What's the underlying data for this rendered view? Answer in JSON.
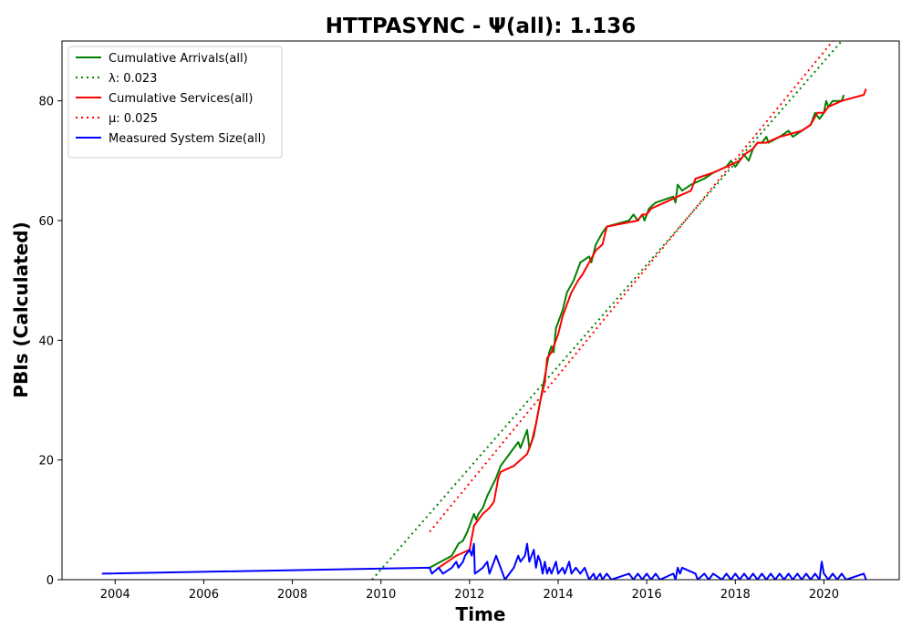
{
  "chart_data": {
    "type": "line",
    "title": "HTTPASYNC -  Ψ(all): 1.136",
    "xlabel": "Time",
    "ylabel": "PBIs (Calculated)",
    "xlim": [
      2002.8,
      2021.7
    ],
    "ylim": [
      0,
      90
    ],
    "x_ticks": [
      2004,
      2006,
      2008,
      2010,
      2012,
      2014,
      2016,
      2018,
      2020
    ],
    "y_ticks": [
      0,
      20,
      40,
      60,
      80
    ],
    "grid": false,
    "legend_position": "top-left",
    "series": [
      {
        "name": "Cumulative Arrivals(all)",
        "color": "#008000",
        "style": "solid",
        "points": [
          [
            2011.1,
            2
          ],
          [
            2011.6,
            4
          ],
          [
            2011.75,
            6
          ],
          [
            2011.85,
            6.5
          ],
          [
            2011.95,
            8
          ],
          [
            2012.05,
            10
          ],
          [
            2012.1,
            11
          ],
          [
            2012.15,
            10
          ],
          [
            2012.2,
            11
          ],
          [
            2012.3,
            12
          ],
          [
            2012.4,
            14
          ],
          [
            2012.6,
            17
          ],
          [
            2012.7,
            19
          ],
          [
            2012.8,
            20
          ],
          [
            2012.9,
            21
          ],
          [
            2013.0,
            22
          ],
          [
            2013.1,
            23
          ],
          [
            2013.15,
            22
          ],
          [
            2013.3,
            25
          ],
          [
            2013.35,
            22
          ],
          [
            2013.45,
            24
          ],
          [
            2013.55,
            28
          ],
          [
            2013.6,
            30
          ],
          [
            2013.75,
            36
          ],
          [
            2013.8,
            38
          ],
          [
            2013.85,
            39
          ],
          [
            2013.9,
            38
          ],
          [
            2013.95,
            42
          ],
          [
            2014.1,
            45
          ],
          [
            2014.2,
            48
          ],
          [
            2014.35,
            50
          ],
          [
            2014.5,
            53
          ],
          [
            2014.7,
            54
          ],
          [
            2014.75,
            53
          ],
          [
            2014.85,
            56
          ],
          [
            2015.0,
            58
          ],
          [
            2015.1,
            59
          ],
          [
            2015.6,
            60
          ],
          [
            2015.7,
            61
          ],
          [
            2015.8,
            60
          ],
          [
            2015.9,
            61
          ],
          [
            2015.95,
            60
          ],
          [
            2016.05,
            62
          ],
          [
            2016.2,
            63
          ],
          [
            2016.6,
            64
          ],
          [
            2016.65,
            63
          ],
          [
            2016.7,
            66
          ],
          [
            2016.8,
            65
          ],
          [
            2017.0,
            66
          ],
          [
            2017.3,
            67
          ],
          [
            2017.5,
            68
          ],
          [
            2017.8,
            69
          ],
          [
            2017.9,
            70
          ],
          [
            2018.0,
            69
          ],
          [
            2018.2,
            71
          ],
          [
            2018.3,
            70
          ],
          [
            2018.4,
            72
          ],
          [
            2018.5,
            73
          ],
          [
            2018.6,
            73
          ],
          [
            2018.7,
            74
          ],
          [
            2018.75,
            73
          ],
          [
            2019.0,
            74
          ],
          [
            2019.2,
            75
          ],
          [
            2019.3,
            74
          ],
          [
            2019.5,
            75
          ],
          [
            2019.7,
            76
          ],
          [
            2019.8,
            78
          ],
          [
            2019.9,
            77
          ],
          [
            2020.0,
            78
          ],
          [
            2020.05,
            80
          ],
          [
            2020.1,
            79
          ],
          [
            2020.2,
            80
          ],
          [
            2020.4,
            80
          ],
          [
            2020.45,
            81
          ]
        ]
      },
      {
        "name": "λ: 0.023",
        "color": "#008000",
        "style": "dotted",
        "points": [
          [
            2009.8,
            0
          ],
          [
            2020.4,
            90
          ]
        ]
      },
      {
        "name": "Cumulative Services(all)",
        "color": "#ff0000",
        "style": "solid",
        "points": [
          [
            2011.3,
            2
          ],
          [
            2011.7,
            4
          ],
          [
            2012.0,
            5
          ],
          [
            2012.1,
            9
          ],
          [
            2012.3,
            11
          ],
          [
            2012.45,
            12
          ],
          [
            2012.55,
            13
          ],
          [
            2012.65,
            17
          ],
          [
            2012.7,
            18
          ],
          [
            2013.0,
            19
          ],
          [
            2013.3,
            21
          ],
          [
            2013.4,
            23
          ],
          [
            2013.5,
            26
          ],
          [
            2013.6,
            30
          ],
          [
            2013.7,
            33
          ],
          [
            2013.75,
            37
          ],
          [
            2013.85,
            38
          ],
          [
            2013.95,
            40
          ],
          [
            2014.0,
            41
          ],
          [
            2014.1,
            44
          ],
          [
            2014.2,
            46
          ],
          [
            2014.3,
            48
          ],
          [
            2014.45,
            50
          ],
          [
            2014.55,
            51
          ],
          [
            2014.7,
            53
          ],
          [
            2014.85,
            55
          ],
          [
            2015.0,
            56
          ],
          [
            2015.1,
            59
          ],
          [
            2015.8,
            60
          ],
          [
            2015.9,
            61
          ],
          [
            2016.0,
            61
          ],
          [
            2016.1,
            62
          ],
          [
            2016.4,
            63
          ],
          [
            2016.7,
            64
          ],
          [
            2017.0,
            65
          ],
          [
            2017.1,
            67
          ],
          [
            2017.5,
            68
          ],
          [
            2017.8,
            69
          ],
          [
            2018.1,
            70
          ],
          [
            2018.2,
            71
          ],
          [
            2018.4,
            72
          ],
          [
            2018.5,
            73
          ],
          [
            2018.7,
            73
          ],
          [
            2019.0,
            74
          ],
          [
            2019.5,
            75
          ],
          [
            2019.7,
            76
          ],
          [
            2019.85,
            78
          ],
          [
            2020.0,
            78
          ],
          [
            2020.1,
            79
          ],
          [
            2020.4,
            80
          ],
          [
            2020.9,
            81
          ],
          [
            2020.95,
            82
          ]
        ]
      },
      {
        "name": "μ: 0.025",
        "color": "#ff0000",
        "style": "dotted",
        "points": [
          [
            2011.1,
            8
          ],
          [
            2020.2,
            90
          ]
        ]
      },
      {
        "name": "Measured System Size(all)",
        "color": "#0000ff",
        "style": "solid",
        "points": [
          [
            2003.7,
            1
          ],
          [
            2011.1,
            2
          ],
          [
            2011.15,
            1
          ],
          [
            2011.3,
            2
          ],
          [
            2011.4,
            1
          ],
          [
            2011.6,
            2
          ],
          [
            2011.7,
            3
          ],
          [
            2011.75,
            2
          ],
          [
            2011.85,
            3
          ],
          [
            2011.9,
            4
          ],
          [
            2012.0,
            5
          ],
          [
            2012.05,
            4
          ],
          [
            2012.1,
            6
          ],
          [
            2012.12,
            1
          ],
          [
            2012.3,
            2
          ],
          [
            2012.4,
            3
          ],
          [
            2012.45,
            1
          ],
          [
            2012.55,
            3
          ],
          [
            2012.6,
            4
          ],
          [
            2012.7,
            2
          ],
          [
            2012.75,
            1
          ],
          [
            2012.8,
            0
          ],
          [
            2012.9,
            1
          ],
          [
            2013.0,
            2
          ],
          [
            2013.1,
            4
          ],
          [
            2013.15,
            3
          ],
          [
            2013.25,
            4
          ],
          [
            2013.3,
            6
          ],
          [
            2013.35,
            3
          ],
          [
            2013.45,
            5
          ],
          [
            2013.5,
            2
          ],
          [
            2013.55,
            4
          ],
          [
            2013.6,
            3
          ],
          [
            2013.65,
            1
          ],
          [
            2013.7,
            3
          ],
          [
            2013.75,
            1
          ],
          [
            2013.8,
            2
          ],
          [
            2013.85,
            1
          ],
          [
            2013.95,
            3
          ],
          [
            2014.0,
            1
          ],
          [
            2014.1,
            2
          ],
          [
            2014.15,
            1
          ],
          [
            2014.25,
            3
          ],
          [
            2014.3,
            1
          ],
          [
            2014.4,
            2
          ],
          [
            2014.5,
            1
          ],
          [
            2014.6,
            2
          ],
          [
            2014.7,
            0
          ],
          [
            2014.8,
            1
          ],
          [
            2014.85,
            0
          ],
          [
            2014.95,
            1
          ],
          [
            2015.0,
            0
          ],
          [
            2015.1,
            1
          ],
          [
            2015.2,
            0
          ],
          [
            2015.6,
            1
          ],
          [
            2015.7,
            0
          ],
          [
            2015.8,
            1
          ],
          [
            2015.9,
            0
          ],
          [
            2016.0,
            1
          ],
          [
            2016.1,
            0
          ],
          [
            2016.2,
            1
          ],
          [
            2016.3,
            0
          ],
          [
            2016.6,
            1
          ],
          [
            2016.65,
            0
          ],
          [
            2016.7,
            2
          ],
          [
            2016.75,
            1
          ],
          [
            2016.8,
            2
          ],
          [
            2017.1,
            1
          ],
          [
            2017.15,
            0
          ],
          [
            2017.3,
            1
          ],
          [
            2017.4,
            0
          ],
          [
            2017.5,
            1
          ],
          [
            2017.7,
            0
          ],
          [
            2017.8,
            1
          ],
          [
            2017.9,
            0
          ],
          [
            2018.0,
            1
          ],
          [
            2018.1,
            0
          ],
          [
            2018.2,
            1
          ],
          [
            2018.3,
            0
          ],
          [
            2018.4,
            1
          ],
          [
            2018.5,
            0
          ],
          [
            2018.6,
            1
          ],
          [
            2018.7,
            0
          ],
          [
            2018.8,
            1
          ],
          [
            2018.9,
            0
          ],
          [
            2019.0,
            1
          ],
          [
            2019.1,
            0
          ],
          [
            2019.2,
            1
          ],
          [
            2019.3,
            0
          ],
          [
            2019.4,
            1
          ],
          [
            2019.5,
            0
          ],
          [
            2019.6,
            1
          ],
          [
            2019.7,
            0
          ],
          [
            2019.8,
            1
          ],
          [
            2019.9,
            0
          ],
          [
            2019.95,
            3
          ],
          [
            2020.0,
            1
          ],
          [
            2020.1,
            0
          ],
          [
            2020.2,
            1
          ],
          [
            2020.3,
            0
          ],
          [
            2020.4,
            1
          ],
          [
            2020.5,
            0
          ],
          [
            2020.9,
            1
          ],
          [
            2020.95,
            0
          ]
        ]
      }
    ]
  }
}
